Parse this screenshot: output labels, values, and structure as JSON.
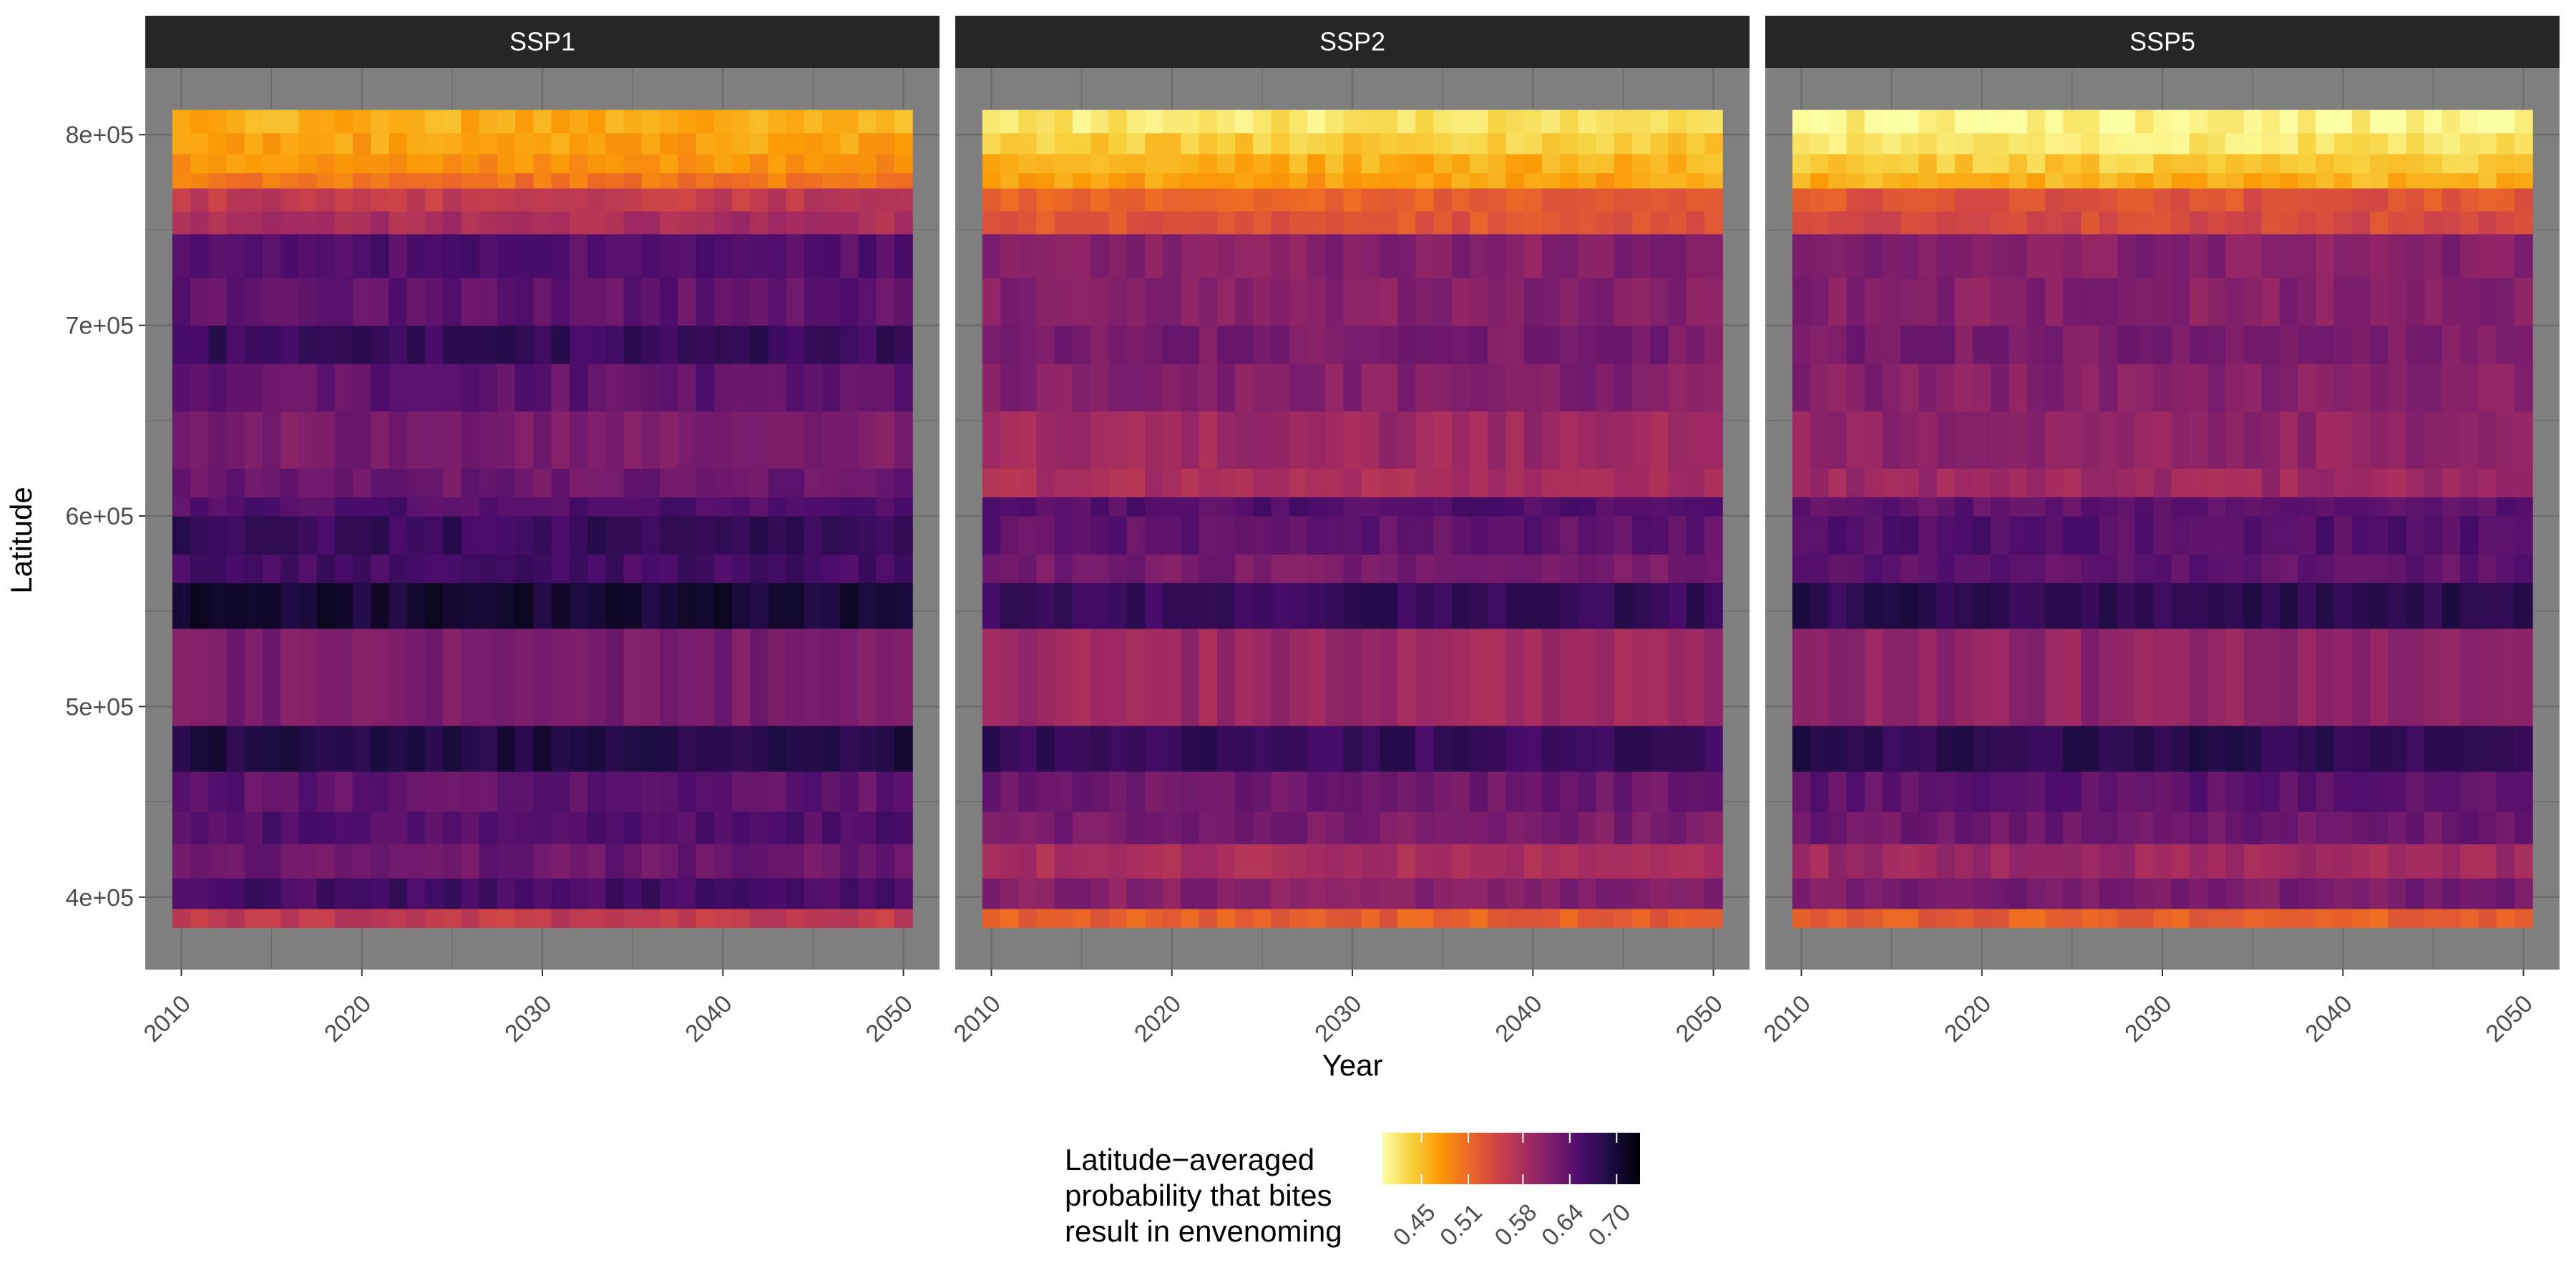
{
  "chart_data": {
    "type": "heatmap",
    "facets": [
      "SSP1",
      "SSP2",
      "SSP5"
    ],
    "xlabel": "Year",
    "ylabel": "Latitude",
    "x_range": [
      2009.5,
      2050.5
    ],
    "xlim": [
      2008,
      2052
    ],
    "x_ticks": [
      2010,
      2020,
      2030,
      2040,
      2050
    ],
    "x_tick_labels": [
      "2010",
      "2020",
      "2030",
      "2040",
      "2050"
    ],
    "y_range": [
      384000,
      813000
    ],
    "ylim": [
      362000,
      835000
    ],
    "y_ticks": [
      400000,
      500000,
      600000,
      700000,
      800000
    ],
    "y_tick_labels": [
      "4e+05",
      "5e+05",
      "6e+05",
      "7e+05",
      "8e+05"
    ],
    "grid": true,
    "panel_background": "#7f7f7f",
    "strip_background": "#262626",
    "colormap": "inferno (reversed)",
    "colormap_stops": [
      "#fcffa4",
      "#f7d13d",
      "#fb9b06",
      "#ed6925",
      "#cf4446",
      "#a52c60",
      "#781c6d",
      "#4a0c6b",
      "#1b0c41",
      "#000004"
    ],
    "color_range": [
      0.4,
      0.73
    ],
    "latitude_band_values": [
      {
        "lat_min": 384000,
        "lat_max": 394000,
        "SSP1": 0.56,
        "SSP2": 0.52,
        "SSP5": 0.52
      },
      {
        "lat_min": 394000,
        "lat_max": 410000,
        "SSP1": 0.66,
        "SSP2": 0.61,
        "SSP5": 0.62
      },
      {
        "lat_min": 410000,
        "lat_max": 428000,
        "SSP1": 0.63,
        "SSP2": 0.58,
        "SSP5": 0.59
      },
      {
        "lat_min": 428000,
        "lat_max": 445000,
        "SSP1": 0.65,
        "SSP2": 0.62,
        "SSP5": 0.63
      },
      {
        "lat_min": 445000,
        "lat_max": 466000,
        "SSP1": 0.64,
        "SSP2": 0.63,
        "SSP5": 0.64
      },
      {
        "lat_min": 466000,
        "lat_max": 490000,
        "SSP1": 0.69,
        "SSP2": 0.67,
        "SSP5": 0.68
      },
      {
        "lat_min": 490000,
        "lat_max": 541000,
        "SSP1": 0.62,
        "SSP2": 0.59,
        "SSP5": 0.6
      },
      {
        "lat_min": 541000,
        "lat_max": 565000,
        "SSP1": 0.7,
        "SSP2": 0.67,
        "SSP5": 0.68
      },
      {
        "lat_min": 565000,
        "lat_max": 580000,
        "SSP1": 0.66,
        "SSP2": 0.62,
        "SSP5": 0.64
      },
      {
        "lat_min": 580000,
        "lat_max": 600000,
        "SSP1": 0.67,
        "SSP2": 0.64,
        "SSP5": 0.65
      },
      {
        "lat_min": 600000,
        "lat_max": 610000,
        "SSP1": 0.65,
        "SSP2": 0.65,
        "SSP5": 0.64
      },
      {
        "lat_min": 610000,
        "lat_max": 625000,
        "SSP1": 0.63,
        "SSP2": 0.58,
        "SSP5": 0.59
      },
      {
        "lat_min": 625000,
        "lat_max": 655000,
        "SSP1": 0.62,
        "SSP2": 0.59,
        "SSP5": 0.6
      },
      {
        "lat_min": 655000,
        "lat_max": 680000,
        "SSP1": 0.64,
        "SSP2": 0.61,
        "SSP5": 0.61
      },
      {
        "lat_min": 680000,
        "lat_max": 700000,
        "SSP1": 0.67,
        "SSP2": 0.62,
        "SSP5": 0.62
      },
      {
        "lat_min": 700000,
        "lat_max": 725000,
        "SSP1": 0.64,
        "SSP2": 0.61,
        "SSP5": 0.61
      },
      {
        "lat_min": 725000,
        "lat_max": 748000,
        "SSP1": 0.65,
        "SSP2": 0.61,
        "SSP5": 0.61
      },
      {
        "lat_min": 748000,
        "lat_max": 760000,
        "SSP1": 0.58,
        "SSP2": 0.53,
        "SSP5": 0.54
      },
      {
        "lat_min": 760000,
        "lat_max": 772000,
        "SSP1": 0.56,
        "SSP2": 0.52,
        "SSP5": 0.53
      },
      {
        "lat_min": 772000,
        "lat_max": 780000,
        "SSP1": 0.5,
        "SSP2": 0.47,
        "SSP5": 0.46
      },
      {
        "lat_min": 780000,
        "lat_max": 790000,
        "SSP1": 0.48,
        "SSP2": 0.46,
        "SSP5": 0.44
      },
      {
        "lat_min": 790000,
        "lat_max": 801000,
        "SSP1": 0.47,
        "SSP2": 0.44,
        "SSP5": 0.42
      },
      {
        "lat_min": 801000,
        "lat_max": 813000,
        "SSP1": 0.46,
        "SSP2": 0.42,
        "SSP5": 0.41
      }
    ],
    "legend": {
      "title_lines": [
        "Latitude−averaged",
        "probability that bites",
        "result in envenoming"
      ],
      "breaks": [
        0.45,
        0.51,
        0.58,
        0.64,
        0.7
      ],
      "break_labels": [
        "0.45",
        "0.51",
        "0.58",
        "0.64",
        "0.70"
      ],
      "position": "bottom"
    }
  }
}
